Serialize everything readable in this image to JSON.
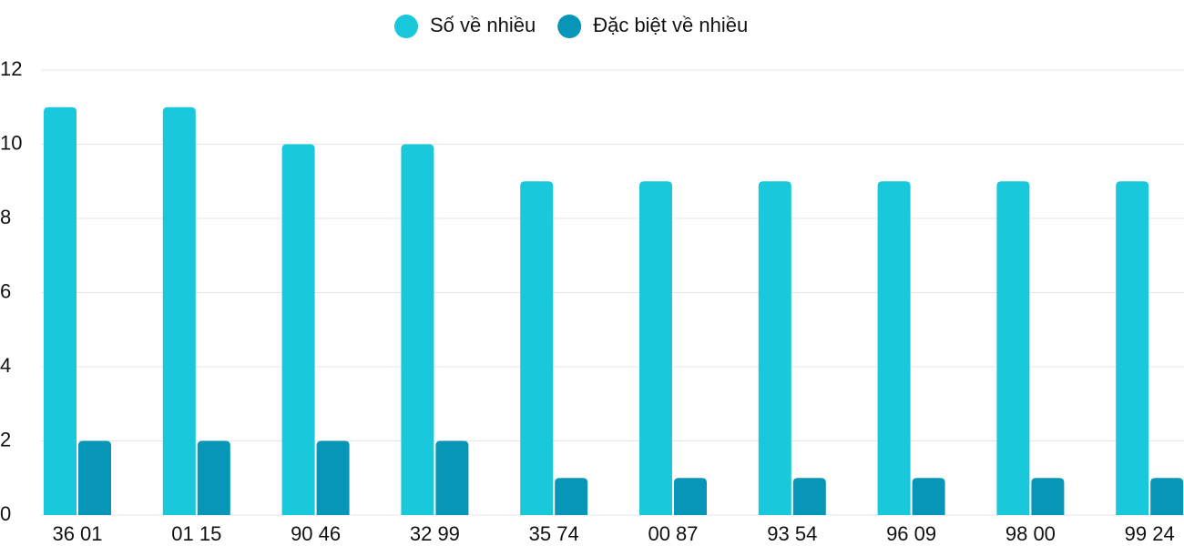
{
  "chart_data": {
    "type": "bar",
    "categories": [
      "36 01",
      "01 15",
      "90 46",
      "32 99",
      "35 74",
      "00 87",
      "93 54",
      "96 09",
      "98 00",
      "99 24"
    ],
    "series": [
      {
        "name": "Số về nhiều",
        "color": "#1ac8db",
        "values": [
          11,
          11,
          10,
          10,
          9,
          9,
          9,
          9,
          9,
          9
        ]
      },
      {
        "name": "Đặc biệt về nhiều",
        "color": "#0795b8",
        "values": [
          2,
          2,
          2,
          2,
          1,
          1,
          1,
          1,
          1,
          1
        ]
      }
    ],
    "ylim": [
      0,
      12
    ],
    "yticks": [
      0,
      2,
      4,
      6,
      8,
      10,
      12
    ],
    "grid": true,
    "legend": "top"
  }
}
